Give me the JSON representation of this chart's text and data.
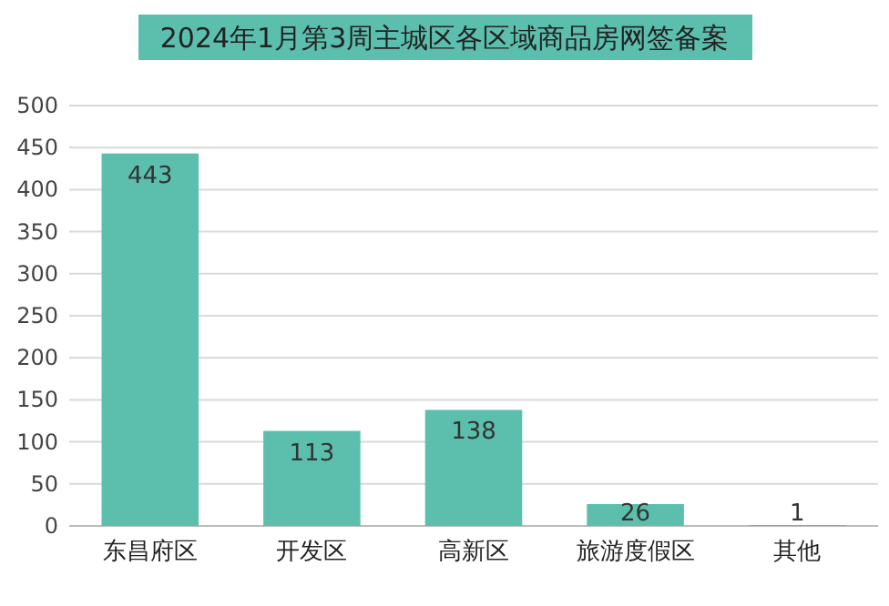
{
  "chart_data": {
    "type": "bar",
    "title": "2024年1月第3周主城区各区域商品房网签备案",
    "categories": [
      "东昌府区",
      "开发区",
      "高新区",
      "旅游度假区",
      "其他"
    ],
    "values": [
      443,
      113,
      138,
      26,
      1
    ],
    "color": "#5cbfae",
    "ylim": [
      0,
      500
    ],
    "yticks": [
      0,
      50,
      100,
      150,
      200,
      250,
      300,
      350,
      400,
      450,
      500
    ],
    "grid": "y",
    "data_labels": true
  }
}
